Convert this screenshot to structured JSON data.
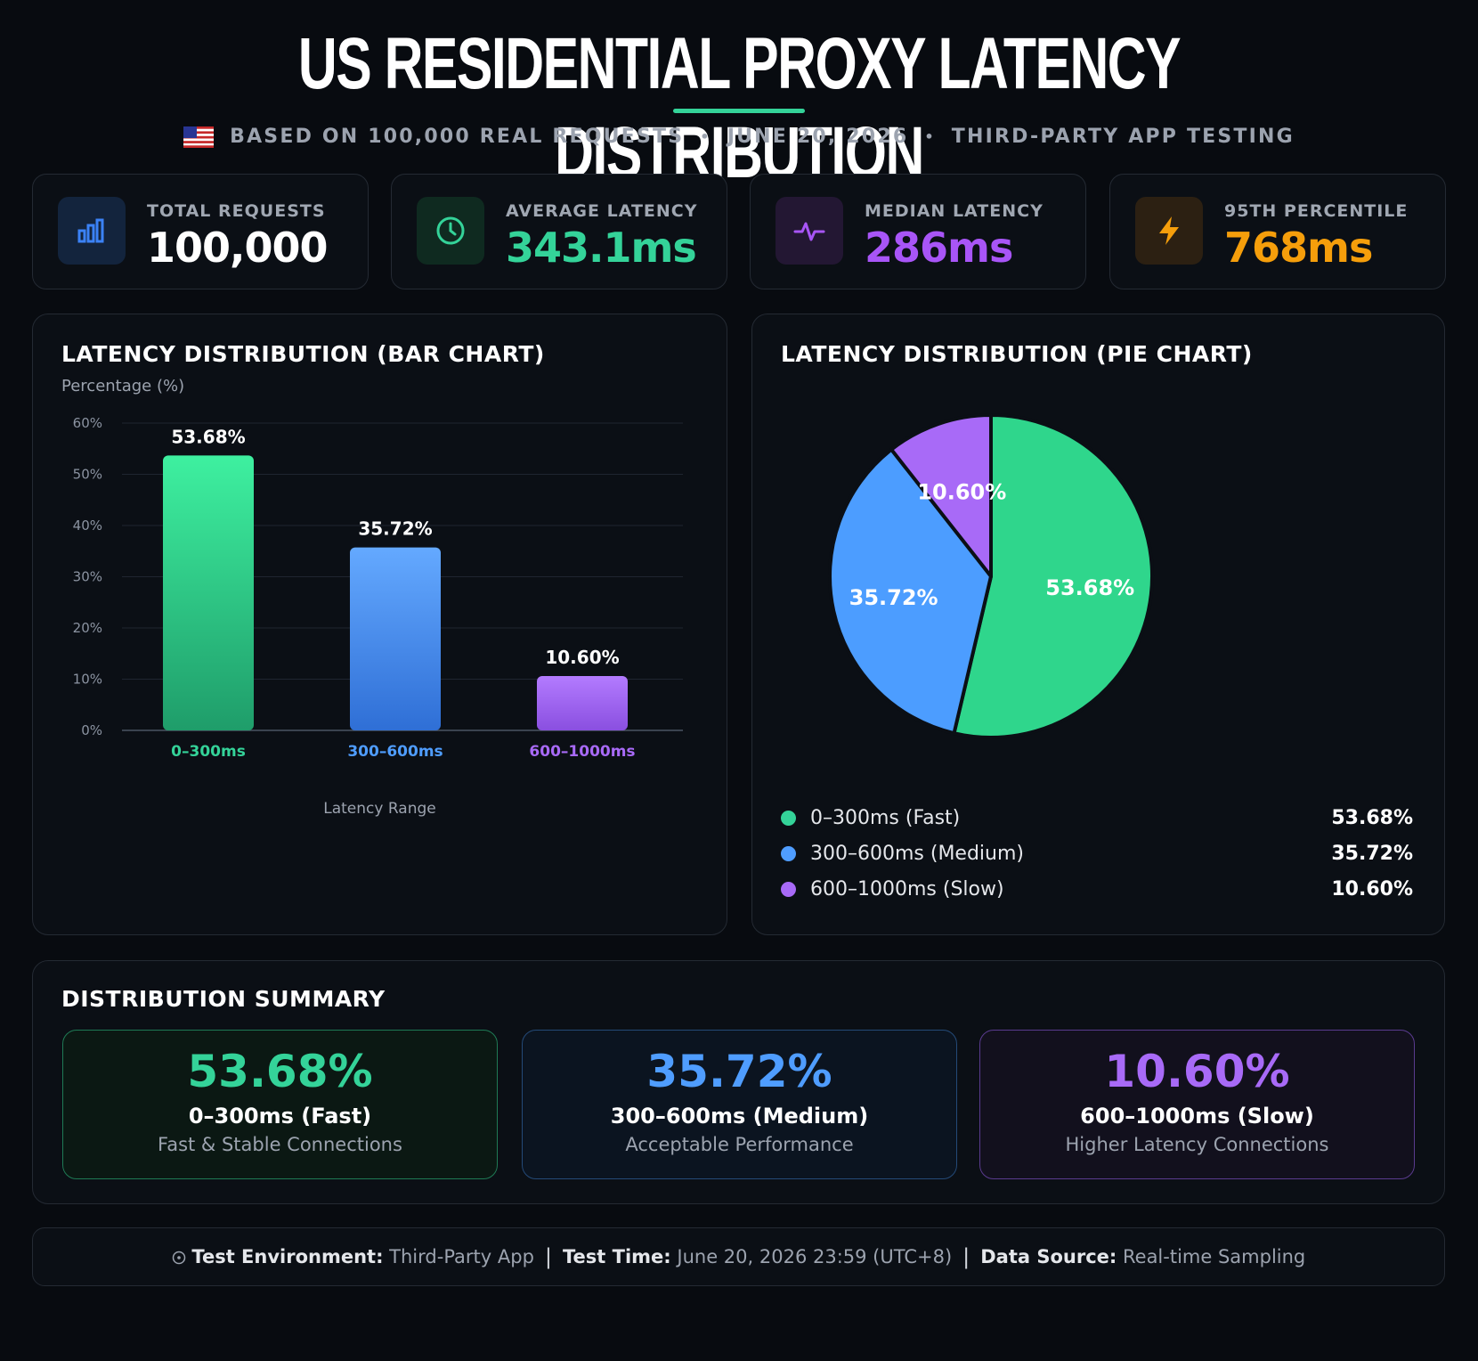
{
  "header": {
    "title": "US RESIDENTIAL PROXY LATENCY DISTRIBUTION",
    "subtitle_parts": [
      "BASED ON 100,000 REAL REQUESTS",
      "JUNE 20, 2026",
      "THIRD-PARTY APP TESTING"
    ],
    "separator": "•",
    "flag_icon": "us-flag-icon"
  },
  "stats": [
    {
      "label": "TOTAL REQUESTS",
      "value": "100,000",
      "icon": "bar-chart-icon",
      "color": "#ffffff",
      "accent": "#3b82f6"
    },
    {
      "label": "AVERAGE LATENCY",
      "value": "343.1ms",
      "icon": "clock-icon",
      "color": "#34d399",
      "accent": "#34d399"
    },
    {
      "label": "MEDIAN LATENCY",
      "value": "286ms",
      "icon": "pulse-icon",
      "color": "#a855f7",
      "accent": "#a855f7"
    },
    {
      "label": "95TH PERCENTILE",
      "value": "768ms",
      "icon": "lightning-icon",
      "color": "#f59e0b",
      "accent": "#f59e0b"
    }
  ],
  "bar_panel": {
    "title": "LATENCY DISTRIBUTION (BAR CHART)",
    "ylabel": "Percentage (%)",
    "xlabel": "Latency Range"
  },
  "pie_panel": {
    "title": "LATENCY DISTRIBUTION (PIE CHART)",
    "legend": [
      {
        "label": "0–300ms (Fast)",
        "value": "53.68%",
        "color": "#34d399"
      },
      {
        "label": "300–600ms (Medium)",
        "value": "35.72%",
        "color": "#4f9dff"
      },
      {
        "label": "600–1000ms (Slow)",
        "value": "10.60%",
        "color": "#a86af7"
      }
    ]
  },
  "chart_data": [
    {
      "type": "bar",
      "title": "LATENCY DISTRIBUTION (BAR CHART)",
      "categories": [
        "0–300ms",
        "300–600ms",
        "600–1000ms"
      ],
      "values": [
        53.68,
        35.72,
        10.6
      ],
      "value_labels": [
        "53.68%",
        "35.72%",
        "10.60%"
      ],
      "colors": [
        "#34d399",
        "#4f9dff",
        "#a86af7"
      ],
      "ylabel": "Percentage (%)",
      "xlabel": "Latency Range",
      "ylim": [
        0,
        60
      ],
      "yticks": [
        0,
        10,
        20,
        30,
        40,
        50,
        60
      ],
      "ytick_labels": [
        "0%",
        "10%",
        "20%",
        "30%",
        "40%",
        "50%",
        "60%"
      ],
      "grid": true
    },
    {
      "type": "pie",
      "title": "LATENCY DISTRIBUTION (PIE CHART)",
      "categories": [
        "0–300ms (Fast)",
        "300–600ms (Medium)",
        "600–1000ms (Slow)"
      ],
      "values": [
        53.68,
        35.72,
        10.6
      ],
      "value_labels": [
        "53.68%",
        "35.72%",
        "10.60%"
      ],
      "colors": [
        "#2fd68c",
        "#4c9dff",
        "#a86af7"
      ],
      "legend": "bottom"
    }
  ],
  "summary": {
    "title": "DISTRIBUTION SUMMARY",
    "cards": [
      {
        "pct": "53.68%",
        "label": "0–300ms (Fast)",
        "desc": "Fast & Stable Connections",
        "color": "#34d399"
      },
      {
        "pct": "35.72%",
        "label": "300–600ms (Medium)",
        "desc": "Acceptable Performance",
        "color": "#4f9dff"
      },
      {
        "pct": "10.60%",
        "label": "600–1000ms (Slow)",
        "desc": "Higher Latency Connections",
        "color": "#a86af7"
      }
    ]
  },
  "footer": {
    "icon": "info-circle-icon",
    "env_key": "Test Environment:",
    "env_val": "Third-Party App",
    "time_key": "Test Time:",
    "time_val": "June 20, 2026 23:59 (UTC+8)",
    "source_key": "Data Source:",
    "source_val": "Real-time Sampling",
    "separator": "|"
  }
}
